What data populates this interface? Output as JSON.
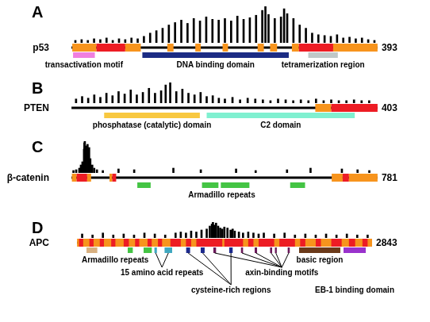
{
  "chart_data": [
    {
      "type": "bar",
      "panel": "A",
      "protein": "p53",
      "length": 393,
      "xlim": [
        0,
        393
      ],
      "ylim": [
        0,
        45
      ],
      "tick_labels": false,
      "color": "#000000",
      "x": [
        5,
        13,
        21,
        29,
        37,
        45,
        53,
        61,
        69,
        77,
        85,
        93,
        101,
        109,
        117,
        125,
        133,
        141,
        149,
        157,
        165,
        173,
        181,
        189,
        197,
        205,
        213,
        221,
        229,
        237,
        245,
        249,
        253,
        261,
        269,
        273,
        277,
        285,
        293,
        301,
        309,
        317,
        325,
        333,
        341,
        349,
        357,
        365,
        373,
        381,
        389
      ],
      "values": [
        3,
        4,
        3,
        5,
        4,
        6,
        3,
        5,
        4,
        6,
        5,
        8,
        12,
        15,
        18,
        22,
        25,
        28,
        24,
        30,
        27,
        32,
        29,
        28,
        30,
        27,
        33,
        29,
        31,
        34,
        40,
        45,
        35,
        30,
        32,
        42,
        36,
        30,
        22,
        18,
        12,
        10,
        9,
        8,
        10,
        6,
        7,
        5,
        6,
        4,
        3
      ],
      "segments": [
        {
          "start": 1,
          "end": 32,
          "color": "#f7941d"
        },
        {
          "start": 32,
          "end": 69,
          "color": "#ed1c24"
        },
        {
          "start": 69,
          "end": 89,
          "color": "#f7941d"
        },
        {
          "start": 123,
          "end": 131,
          "color": "#f7941d"
        },
        {
          "start": 159,
          "end": 166,
          "color": "#f7941d"
        },
        {
          "start": 194,
          "end": 201,
          "color": "#f7941d"
        },
        {
          "start": 239,
          "end": 247,
          "color": "#f7941d"
        },
        {
          "start": 255,
          "end": 264,
          "color": "#f7941d"
        },
        {
          "start": 283,
          "end": 292,
          "color": "#f7941d"
        },
        {
          "start": 292,
          "end": 336,
          "color": "#ed1c24"
        },
        {
          "start": 336,
          "end": 393,
          "color": "#f7941d"
        }
      ],
      "domains": [
        {
          "label": "transactivation motif",
          "color": "#f080e0",
          "ranges": [
            [
              2,
              30
            ]
          ]
        },
        {
          "label": "DNA binding domain",
          "color": "#1c2c84",
          "ranges": [
            [
              91,
              279
            ]
          ]
        },
        {
          "label": "tetramerization region",
          "color": "#c0c8c8",
          "ranges": [
            [
              304,
              342
            ]
          ]
        }
      ]
    },
    {
      "type": "bar",
      "panel": "B",
      "protein": "PTEN",
      "length": 403,
      "xlim": [
        0,
        403
      ],
      "ylim": [
        0,
        25
      ],
      "tick_labels": false,
      "color": "#000000",
      "x": [
        6,
        14,
        22,
        30,
        38,
        46,
        54,
        62,
        70,
        78,
        86,
        94,
        102,
        110,
        118,
        124,
        130,
        138,
        146,
        154,
        162,
        170,
        178,
        186,
        194,
        202,
        212,
        222,
        232,
        242,
        252,
        262,
        272,
        282,
        292,
        302,
        312,
        322,
        332,
        342,
        352,
        362,
        372,
        382,
        392
      ],
      "values": [
        5,
        8,
        6,
        10,
        7,
        12,
        9,
        14,
        11,
        16,
        10,
        13,
        18,
        12,
        15,
        22,
        25,
        14,
        17,
        12,
        10,
        13,
        8,
        9,
        6,
        5,
        7,
        4,
        6,
        5,
        4,
        3,
        5,
        4,
        3,
        4,
        3,
        5,
        3,
        4,
        3,
        3,
        4,
        3,
        3
      ],
      "segments": [
        {
          "start": 321,
          "end": 342,
          "color": "#f7941d"
        },
        {
          "start": 342,
          "end": 403,
          "color": "#ed1c24"
        }
      ],
      "domains": [
        {
          "label": "phosphatase (catalytic) domain",
          "color": "#f8c840",
          "ranges": [
            [
              43,
              169
            ]
          ]
        },
        {
          "label": "C2 domain",
          "color": "#80f0d0",
          "ranges": [
            [
              178,
              373
            ]
          ]
        }
      ]
    },
    {
      "type": "bar",
      "panel": "C",
      "protein": "β-catenin",
      "length": 781,
      "xlim": [
        0,
        781
      ],
      "ylim": [
        0,
        40
      ],
      "tick_labels": false,
      "color": "#000000",
      "x": [
        5,
        12,
        20,
        24,
        28,
        32,
        33,
        34,
        35,
        37,
        41,
        45,
        48,
        53,
        58,
        65,
        80,
        120,
        160,
        260,
        330,
        420,
        470,
        550,
        610,
        690,
        730,
        760
      ],
      "values": [
        3,
        4,
        6,
        10,
        14,
        30,
        38,
        40,
        26,
        34,
        36,
        32,
        18,
        10,
        6,
        4,
        3,
        5,
        4,
        6,
        4,
        5,
        3,
        4,
        6,
        5,
        4,
        3
      ],
      "segments": [
        {
          "start": 1,
          "end": 13,
          "color": "#f7941d"
        },
        {
          "start": 13,
          "end": 40,
          "color": "#ed1c24"
        },
        {
          "start": 40,
          "end": 50,
          "color": "#f7941d"
        },
        {
          "start": 97,
          "end": 104,
          "color": "#f7941d"
        },
        {
          "start": 104,
          "end": 114,
          "color": "#ed1c24"
        },
        {
          "start": 664,
          "end": 692,
          "color": "#f7941d"
        },
        {
          "start": 692,
          "end": 708,
          "color": "#ed1c24"
        },
        {
          "start": 708,
          "end": 781,
          "color": "#f7941d"
        }
      ],
      "domains": [
        {
          "label": "Armadillo repeats",
          "color": "#44c444",
          "ranges": [
            [
              168,
              202
            ],
            [
              333,
              375
            ],
            [
              381,
              454
            ],
            [
              558,
              596
            ]
          ]
        }
      ]
    },
    {
      "type": "bar",
      "panel": "D",
      "protein": "APC",
      "length": 2843,
      "xlim": [
        0,
        2843
      ],
      "ylim": [
        0,
        16
      ],
      "tick_labels": false,
      "color": "#000000",
      "x": [
        50,
        150,
        250,
        350,
        450,
        550,
        650,
        750,
        850,
        950,
        1000,
        1050,
        1100,
        1150,
        1200,
        1250,
        1280,
        1300,
        1310,
        1320,
        1340,
        1360,
        1380,
        1400,
        1420,
        1450,
        1480,
        1500,
        1520,
        1560,
        1600,
        1650,
        1700,
        1750,
        1800,
        1900,
        2000,
        2100,
        2200,
        2300,
        2400,
        2500,
        2600,
        2700,
        2800
      ],
      "values": [
        4,
        3,
        5,
        3,
        4,
        3,
        5,
        4,
        3,
        5,
        6,
        5,
        7,
        6,
        8,
        9,
        12,
        14,
        16,
        13,
        15,
        12,
        10,
        9,
        11,
        10,
        8,
        9,
        7,
        6,
        5,
        6,
        5,
        4,
        5,
        4,
        5,
        3,
        4,
        3,
        4,
        3,
        4,
        3,
        3
      ],
      "segments": [
        {
          "start": 1,
          "end": 2843,
          "color": "#f7941d"
        },
        {
          "start": 20,
          "end": 60,
          "color": "#ed1c24"
        },
        {
          "start": 120,
          "end": 160,
          "color": "#ed1c24"
        },
        {
          "start": 220,
          "end": 260,
          "color": "#ed1c24"
        },
        {
          "start": 330,
          "end": 370,
          "color": "#ed1c24"
        },
        {
          "start": 450,
          "end": 500,
          "color": "#ed1c24"
        },
        {
          "start": 560,
          "end": 600,
          "color": "#ed1c24"
        },
        {
          "start": 680,
          "end": 720,
          "color": "#ed1c24"
        },
        {
          "start": 780,
          "end": 820,
          "color": "#ed1c24"
        },
        {
          "start": 900,
          "end": 1000,
          "color": "#ed1c24"
        },
        {
          "start": 1050,
          "end": 1100,
          "color": "#ed1c24"
        },
        {
          "start": 1150,
          "end": 1400,
          "color": "#ed1c24"
        },
        {
          "start": 1420,
          "end": 1600,
          "color": "#ed1c24"
        },
        {
          "start": 1650,
          "end": 1700,
          "color": "#ed1c24"
        },
        {
          "start": 1750,
          "end": 1900,
          "color": "#ed1c24"
        },
        {
          "start": 1950,
          "end": 2100,
          "color": "#ed1c24"
        },
        {
          "start": 2150,
          "end": 2200,
          "color": "#ed1c24"
        },
        {
          "start": 2300,
          "end": 2350,
          "color": "#ed1c24"
        },
        {
          "start": 2450,
          "end": 2550,
          "color": "#ed1c24"
        },
        {
          "start": 2620,
          "end": 2680,
          "color": "#ed1c24"
        },
        {
          "start": 2750,
          "end": 2800,
          "color": "#ed1c24"
        }
      ],
      "domains": [
        {
          "label": "Armadillo repeats",
          "color": "#44c444",
          "ranges": [
            [
              489,
              538
            ],
            [
              642,
              721
            ]
          ]
        },
        {
          "color": "#d8b080",
          "ranges": [
            [
              92,
              196
            ]
          ]
        },
        {
          "label": "15 amino acid repeats",
          "color": "#40a8c0",
          "ranges": [
            [
              746,
              770
            ],
            [
              844,
              917
            ]
          ]
        },
        {
          "label": "cysteine-rich regions",
          "color": "#1c2a8c",
          "ranges": [
            [
              1052,
              1090
            ],
            [
              1192,
              1230
            ],
            [
              1467,
              1500
            ]
          ]
        },
        {
          "label": "axin-binding motifs",
          "color": "#6a1a5a",
          "ranges": [
            [
              1314,
              1340
            ],
            [
              1580,
              1600
            ],
            [
              1712,
              1735
            ],
            [
              1860,
              1880
            ],
            [
              1907,
              1925
            ],
            [
              2030,
              2050
            ]
          ]
        },
        {
          "label": "basic region",
          "color": "#6b3a1a",
          "ranges": [
            [
              2140,
              2537
            ]
          ]
        },
        {
          "label": "EB-1 binding domain",
          "color": "#9932cc",
          "ranges": [
            [
              2568,
              2782
            ]
          ]
        }
      ]
    }
  ]
}
